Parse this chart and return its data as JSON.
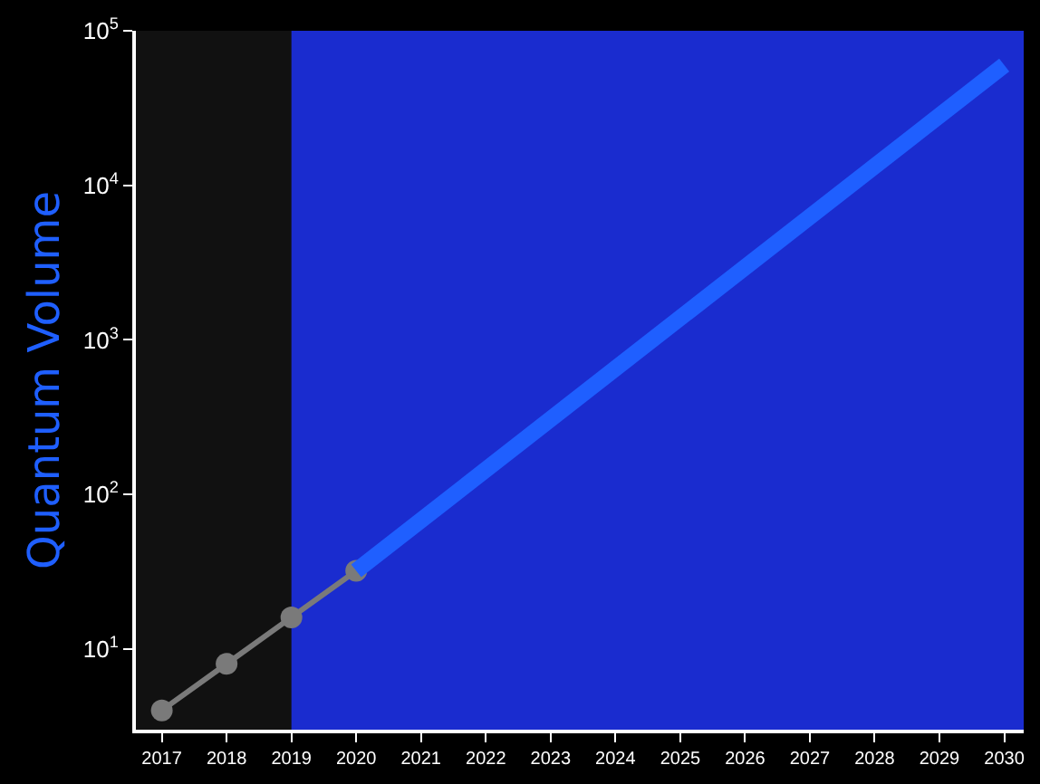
{
  "chart_data": {
    "type": "line",
    "ylabel": "Quantum Volume",
    "log": "y",
    "x": [
      2017,
      2018,
      2019,
      2020
    ],
    "series": [
      {
        "color": "#7a7a7a",
        "values": [
          4,
          8,
          16,
          32
        ],
        "marker": "circle"
      },
      {
        "color": "#1f5fff",
        "x": [
          2020,
          2030
        ],
        "values": [
          32,
          60000
        ],
        "marker": "none"
      }
    ],
    "xlim": [
      2016.6,
      2030.3
    ],
    "ylim": [
      3,
      100000
    ],
    "xticks": [
      2017,
      2018,
      2019,
      2020,
      2021,
      2022,
      2023,
      2024,
      2025,
      2026,
      2027,
      2028,
      2029,
      2030
    ],
    "yticks": [
      {
        "value": 10,
        "label": "10$^{1}$"
      },
      {
        "value": 100,
        "label": "10$^{2}$"
      },
      {
        "value": 1000,
        "label": "10$^{3}$"
      },
      {
        "value": 10000,
        "label": "10$^{4}$"
      },
      {
        "value": 100000,
        "label": "10$^{5}$"
      }
    ],
    "bands": [
      {
        "axis": "x",
        "from": 2019,
        "to": 2030.3,
        "color": "#1a2ccf"
      }
    ]
  }
}
